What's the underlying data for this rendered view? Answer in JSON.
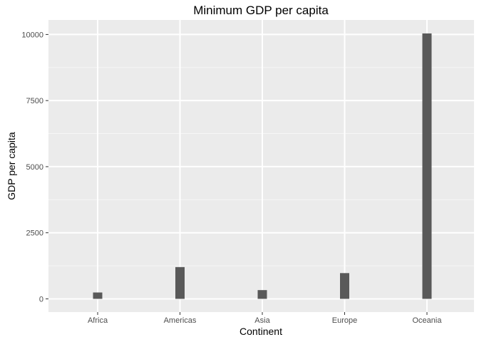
{
  "chart_data": {
    "type": "bar",
    "title": "Minimum GDP per capita",
    "xlabel": "Continent",
    "ylabel": "GDP per capita",
    "categories": [
      "Africa",
      "Americas",
      "Asia",
      "Europe",
      "Oceania"
    ],
    "values": [
      241,
      1202,
      331,
      974,
      10040
    ],
    "ylim": [
      -500,
      10550
    ],
    "yticks": [
      0,
      2500,
      5000,
      7500,
      10000
    ],
    "grid": true,
    "legend": "none",
    "colors": {
      "panel": "#ebebeb",
      "grid_major": "#ffffff",
      "bar": "#595959",
      "tick": "#333333"
    }
  }
}
